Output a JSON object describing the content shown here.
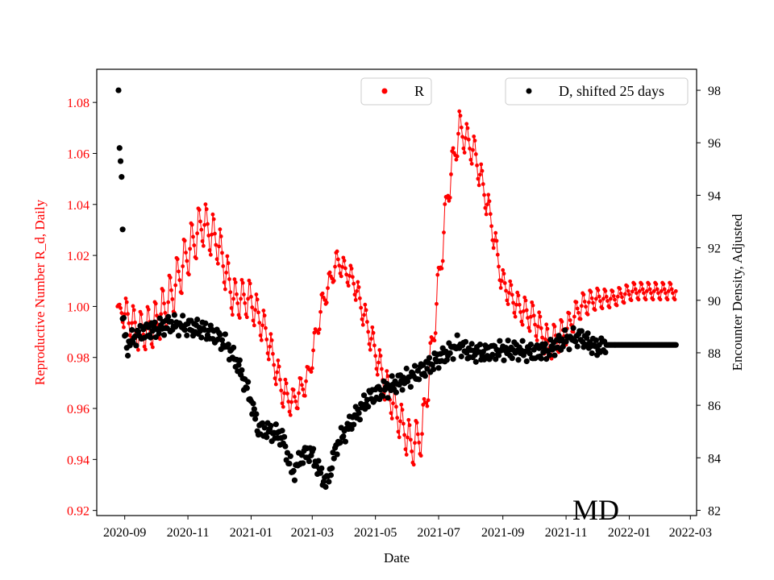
{
  "chart_data": {
    "type": "scatter",
    "xlabel": "Date",
    "ylabel_left": "Reproductive Number R_d, Daily",
    "ylabel_right": "Encounter Density, Adjusted",
    "annotation": "MD",
    "xlim": [
      "2020-08-05",
      "2022-03-07"
    ],
    "ylim_left": [
      0.918,
      1.093
    ],
    "ylim_right": [
      81.8,
      98.8
    ],
    "x_ticks": [
      "2020-09",
      "2020-11",
      "2021-01",
      "2021-03",
      "2021-05",
      "2021-07",
      "2021-09",
      "2021-11",
      "2022-01",
      "2022-03"
    ],
    "y_ticks_left": [
      "0.92",
      "0.94",
      "0.96",
      "0.98",
      "1.00",
      "1.02",
      "1.04",
      "1.06",
      "1.08"
    ],
    "y_ticks_right": [
      "82",
      "84",
      "86",
      "88",
      "90",
      "92",
      "94",
      "96",
      "98"
    ],
    "colors": {
      "R": "#ff0000",
      "D": "#000000"
    },
    "series": [
      {
        "name": "R",
        "axis": "left",
        "color": "#ff0000",
        "center_curve": [
          [
            "2020-08-25",
            1.0
          ],
          [
            "2020-09-01",
            0.997
          ],
          [
            "2020-09-15",
            0.99
          ],
          [
            "2020-09-30",
            0.993
          ],
          [
            "2020-10-15",
            1.003
          ],
          [
            "2020-10-31",
            1.02
          ],
          [
            "2020-11-15",
            1.033
          ],
          [
            "2020-11-30",
            1.025
          ],
          [
            "2020-12-15",
            1.003
          ],
          [
            "2020-12-31",
            1.003
          ],
          [
            "2021-01-15",
            0.99
          ],
          [
            "2021-01-31",
            0.967
          ],
          [
            "2021-02-10",
            0.962
          ],
          [
            "2021-02-25",
            0.972
          ],
          [
            "2021-03-10",
            1.0
          ],
          [
            "2021-03-25",
            1.018
          ],
          [
            "2021-04-10",
            1.01
          ],
          [
            "2021-04-25",
            0.99
          ],
          [
            "2021-05-10",
            0.97
          ],
          [
            "2021-05-25",
            0.955
          ],
          [
            "2021-06-05",
            0.945
          ],
          [
            "2021-06-15",
            0.95
          ],
          [
            "2021-06-25",
            0.985
          ],
          [
            "2021-07-10",
            1.045
          ],
          [
            "2021-07-21",
            1.07
          ],
          [
            "2021-08-05",
            1.06
          ],
          [
            "2021-08-20",
            1.035
          ],
          [
            "2021-08-31",
            1.01
          ],
          [
            "2021-09-15",
            1.0
          ],
          [
            "2021-10-01",
            0.995
          ],
          [
            "2021-10-15",
            0.985
          ],
          [
            "2021-10-31",
            0.99
          ],
          [
            "2021-11-15",
            1.0
          ],
          [
            "2021-11-30",
            1.003
          ],
          [
            "2021-12-15",
            1.003
          ],
          [
            "2022-01-05",
            1.006
          ],
          [
            "2022-02-15",
            1.006
          ]
        ],
        "amplitude_curve": [
          [
            "2020-08-25",
            0.0
          ],
          [
            "2020-09-01",
            0.008
          ],
          [
            "2020-10-15",
            0.012
          ],
          [
            "2020-12-01",
            0.01
          ],
          [
            "2021-01-15",
            0.008
          ],
          [
            "2021-02-25",
            0.006
          ],
          [
            "2021-04-01",
            0.005
          ],
          [
            "2021-05-10",
            0.008
          ],
          [
            "2021-06-10",
            0.01
          ],
          [
            "2021-07-20",
            0.008
          ],
          [
            "2021-09-01",
            0.006
          ],
          [
            "2021-10-15",
            0.008
          ],
          [
            "2021-11-15",
            0.006
          ],
          [
            "2021-12-15",
            0.004
          ],
          [
            "2022-02-15",
            0.004
          ]
        ]
      },
      {
        "name": "D, shifted 25 days",
        "axis": "right",
        "color": "#000000",
        "outliers": [
          [
            "2020-08-26",
            98.0
          ],
          [
            "2020-08-27",
            95.8
          ],
          [
            "2020-08-28",
            95.3
          ],
          [
            "2020-08-29",
            94.7
          ],
          [
            "2020-08-30",
            92.7
          ]
        ],
        "center_curve": [
          [
            "2020-08-30",
            89.3
          ],
          [
            "2020-09-03",
            88.2
          ],
          [
            "2020-09-10",
            88.6
          ],
          [
            "2020-09-20",
            88.8
          ],
          [
            "2020-09-30",
            88.9
          ],
          [
            "2020-10-15",
            89.1
          ],
          [
            "2020-10-31",
            89.0
          ],
          [
            "2020-11-15",
            88.9
          ],
          [
            "2020-11-30",
            88.6
          ],
          [
            "2020-12-10",
            88.2
          ],
          [
            "2020-12-20",
            87.5
          ],
          [
            "2020-12-31",
            86.3
          ],
          [
            "2021-01-08",
            85.1
          ],
          [
            "2021-01-20",
            85.0
          ],
          [
            "2021-01-31",
            84.8
          ],
          [
            "2021-02-10",
            83.4
          ],
          [
            "2021-02-20",
            84.1
          ],
          [
            "2021-02-28",
            84.2
          ],
          [
            "2021-03-08",
            83.5
          ],
          [
            "2021-03-15",
            83.0
          ],
          [
            "2021-03-25",
            84.5
          ],
          [
            "2021-04-10",
            85.5
          ],
          [
            "2021-04-25",
            86.3
          ],
          [
            "2021-05-10",
            86.6
          ],
          [
            "2021-05-25",
            86.9
          ],
          [
            "2021-06-10",
            87.2
          ],
          [
            "2021-06-25",
            87.6
          ],
          [
            "2021-07-10",
            88.0
          ],
          [
            "2021-07-20",
            88.3
          ],
          [
            "2021-08-01",
            88.0
          ],
          [
            "2021-08-15",
            88.0
          ],
          [
            "2021-08-31",
            88.1
          ],
          [
            "2021-09-15",
            88.1
          ],
          [
            "2021-09-30",
            88.0
          ],
          [
            "2021-10-15",
            88.1
          ],
          [
            "2021-10-31",
            88.5
          ],
          [
            "2021-11-15",
            88.6
          ],
          [
            "2021-11-30",
            88.2
          ],
          [
            "2021-12-10",
            88.3
          ],
          [
            "2022-02-15",
            88.3
          ]
        ]
      }
    ],
    "legend": [
      {
        "label": "R",
        "color": "#ff0000",
        "position": "top-center"
      },
      {
        "label": "D, shifted 25 days",
        "color": "#000000",
        "position": "top-right"
      }
    ]
  }
}
